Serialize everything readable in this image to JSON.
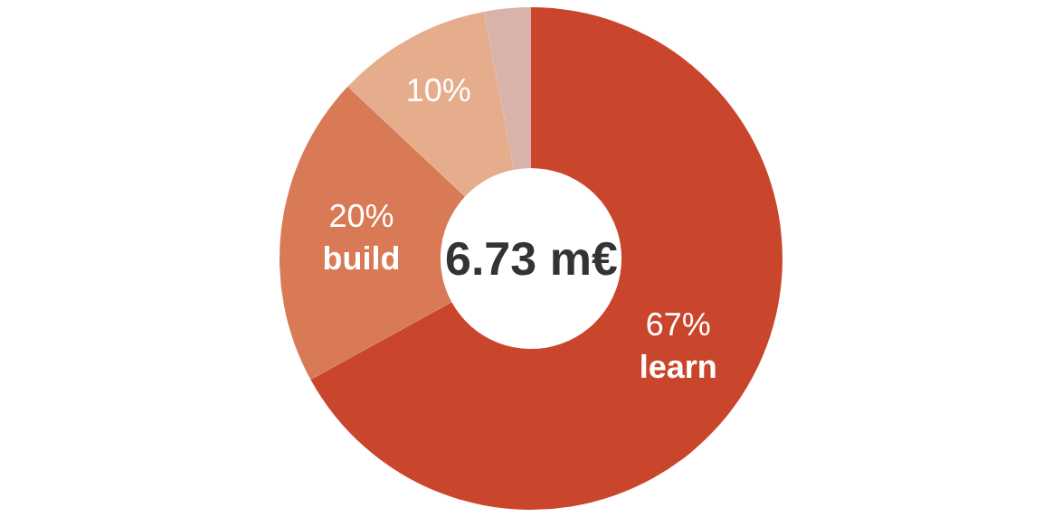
{
  "chart_data": {
    "type": "donut",
    "categories": [
      "learn",
      "build",
      null,
      null
    ],
    "values": [
      67,
      20,
      10,
      3
    ],
    "colors": [
      "#c9462c",
      "#d97a56",
      "#e6ad8c",
      "#d9b2aa"
    ],
    "value_labels": [
      "67%",
      "20%",
      "10%",
      null
    ],
    "annotations": [
      "6.73 m€"
    ],
    "legend": false
  }
}
